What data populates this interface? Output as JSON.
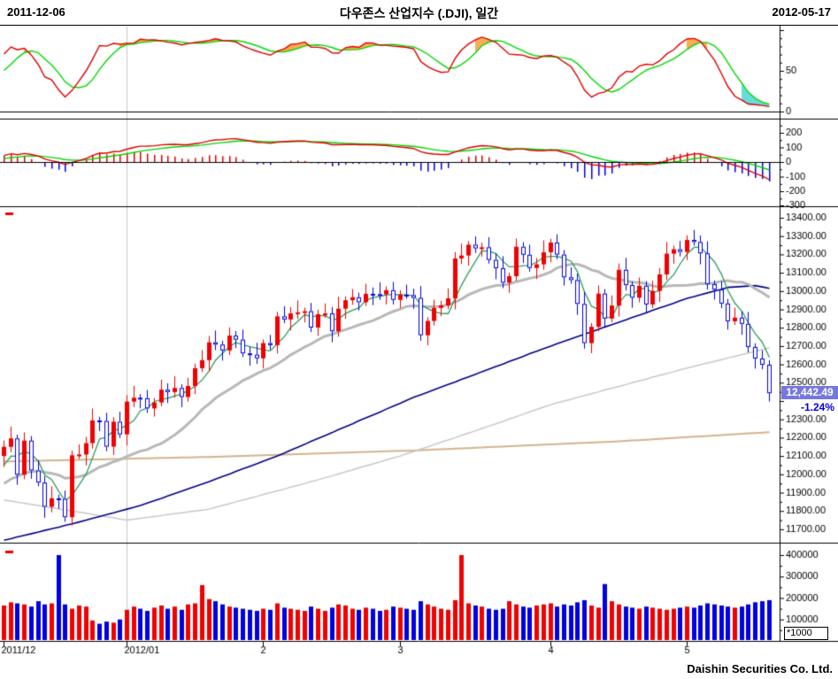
{
  "header": {
    "start_date": "2011-12-06",
    "title": "다우존스 산업지수 (.DJI), 일간",
    "end_date": "2012-05-17"
  },
  "footer": {
    "brand": "Daishin Securities Co. Ltd."
  },
  "price_label": {
    "last": "12,442.49",
    "change_pct": "-1.24%"
  },
  "volume_unit": "*1000",
  "colors": {
    "up": "#f00000",
    "down": "#0000e0",
    "ma5": "#2e9e5b",
    "ma20": "#b8b8b8",
    "ma60": "#00008b",
    "ma120": "#c9c9c9",
    "ma200": "#d2b48c",
    "osc_fast": "#e00000",
    "osc_slow": "#00d800",
    "fill_over": "#ffaa55",
    "fill_under": "#66dddd",
    "macd": "#e00000",
    "signal": "#00d800",
    "hist_pos": "#e00000",
    "hist_neg": "#0000e0",
    "grid": "#c8c8c8",
    "axis": "#000000",
    "tag_bg": "#7676e0",
    "pct_text": "#0000e0"
  },
  "chart_data": [
    {
      "type": "line",
      "name": "stochastic-oscillator",
      "series": [
        {
          "name": "fast",
          "color_key": "osc_fast"
        },
        {
          "name": "slow",
          "color_key": "osc_slow"
        }
      ],
      "params": {
        "lookback": 12,
        "smooth_k": 5,
        "smooth_d": 5
      },
      "derived_from": "price-panel closes",
      "range": [
        0,
        100
      ],
      "yticks": [
        50,
        0
      ]
    },
    {
      "type": "macd",
      "name": "macd-indicator",
      "params": {
        "fast": 12,
        "slow": 26,
        "signal": 9
      },
      "derived_from": "price-panel closes",
      "yticks": [
        200,
        100,
        0,
        -100,
        -200,
        -300
      ]
    },
    {
      "type": "candlestick",
      "name": "dow-jones-daily",
      "title": "다우존스 산업지수 (.DJI), 일간",
      "last_close": 12442.49,
      "change_pct": -1.24,
      "ylim": [
        11650,
        13450
      ],
      "yticks": [
        13400,
        13300,
        13200,
        13100,
        13000,
        12900,
        12800,
        12700,
        12600,
        12500,
        12300,
        12200,
        12100,
        12000,
        11900,
        11800,
        11700
      ],
      "months": [
        {
          "label": "2011/12",
          "index": 0
        },
        {
          "label": "2012/01",
          "index": 18
        },
        {
          "label": "2",
          "index": 38
        },
        {
          "label": "3",
          "index": 58
        },
        {
          "label": "4",
          "index": 80
        },
        {
          "label": "5",
          "index": 100
        }
      ],
      "closes": [
        12150,
        12196,
        11998,
        12184,
        12021,
        11955,
        11823,
        11869,
        11866,
        11766,
        12104,
        12108,
        12170,
        12294,
        12291,
        12151,
        12287,
        12218,
        12397,
        12418,
        12415,
        12360,
        12392,
        12462,
        12449,
        12471,
        12422,
        12482,
        12579,
        12623,
        12720,
        12708,
        12676,
        12757,
        12735,
        12660,
        12653,
        12633,
        12716,
        12705,
        12862,
        12845,
        12878,
        12884,
        12890,
        12801,
        12874,
        12878,
        12781,
        12904,
        12950,
        12966,
        12939,
        12985,
        12983,
        12982,
        13005,
        12952,
        12980,
        12978,
        12963,
        12759,
        12837,
        12908,
        12922,
        12960,
        13178,
        13194,
        13253,
        13233,
        13239,
        13170,
        13125,
        13046,
        13081,
        13242,
        13198,
        13126,
        13146,
        13212,
        13265,
        13199,
        13075,
        13060,
        12930,
        12716,
        12805,
        12986,
        12850,
        12921,
        13116,
        13033,
        12964,
        13029,
        12927,
        13001,
        13091,
        13204,
        13228,
        13214,
        13279,
        13268,
        13206,
        13038,
        13008,
        12932,
        12835,
        12855,
        12821,
        12695,
        12632,
        12598,
        12442.49
      ],
      "overlays": {
        "ma5": {
          "color_key": "ma5",
          "period": 5,
          "computed": true
        },
        "ma20": {
          "color_key": "ma20",
          "period": 20,
          "computed": true,
          "width": 3
        },
        "ma60": {
          "color_key": "ma60",
          "points": [
            [
              0,
              11640
            ],
            [
              10,
              11730
            ],
            [
              20,
              11830
            ],
            [
              30,
              11960
            ],
            [
              40,
              12100
            ],
            [
              50,
              12260
            ],
            [
              60,
              12420
            ],
            [
              70,
              12560
            ],
            [
              80,
              12700
            ],
            [
              90,
              12830
            ],
            [
              100,
              12960
            ],
            [
              106,
              13020
            ],
            [
              110,
              13030
            ],
            [
              112,
              13015
            ]
          ]
        },
        "ma120": {
          "color_key": "ma120",
          "points": [
            [
              0,
              11860
            ],
            [
              10,
              11800
            ],
            [
              18,
              11750
            ],
            [
              30,
              11810
            ],
            [
              45,
              11960
            ],
            [
              58,
              12100
            ],
            [
              70,
              12250
            ],
            [
              80,
              12380
            ],
            [
              90,
              12480
            ],
            [
              100,
              12580
            ],
            [
              112,
              12690
            ]
          ]
        },
        "ma200": {
          "color_key": "ma200",
          "points": [
            [
              0,
              12070
            ],
            [
              30,
              12095
            ],
            [
              60,
              12130
            ],
            [
              90,
              12180
            ],
            [
              112,
              12230
            ]
          ]
        }
      }
    },
    {
      "type": "bar",
      "name": "volume",
      "unit": "*1000",
      "yticks": [
        400000,
        300000,
        200000,
        100000
      ],
      "values_thousands": [
        165,
        180,
        175,
        170,
        160,
        185,
        170,
        175,
        400,
        170,
        150,
        165,
        160,
        95,
        80,
        90,
        85,
        100,
        145,
        160,
        150,
        140,
        155,
        165,
        150,
        160,
        145,
        170,
        175,
        260,
        195,
        185,
        170,
        160,
        155,
        150,
        145,
        140,
        150,
        145,
        175,
        155,
        150,
        145,
        140,
        160,
        150,
        140,
        155,
        170,
        165,
        150,
        145,
        155,
        150,
        140,
        145,
        160,
        155,
        150,
        145,
        185,
        170,
        160,
        150,
        145,
        190,
        400,
        175,
        165,
        160,
        150,
        145,
        150,
        185,
        170,
        160,
        155,
        165,
        170,
        175,
        160,
        170,
        165,
        180,
        190,
        165,
        155,
        265,
        185,
        170,
        160,
        155,
        150,
        160,
        155,
        150,
        145,
        150,
        155,
        160,
        155,
        165,
        175,
        170,
        165,
        160,
        155,
        160,
        170,
        180,
        185,
        190
      ]
    }
  ]
}
